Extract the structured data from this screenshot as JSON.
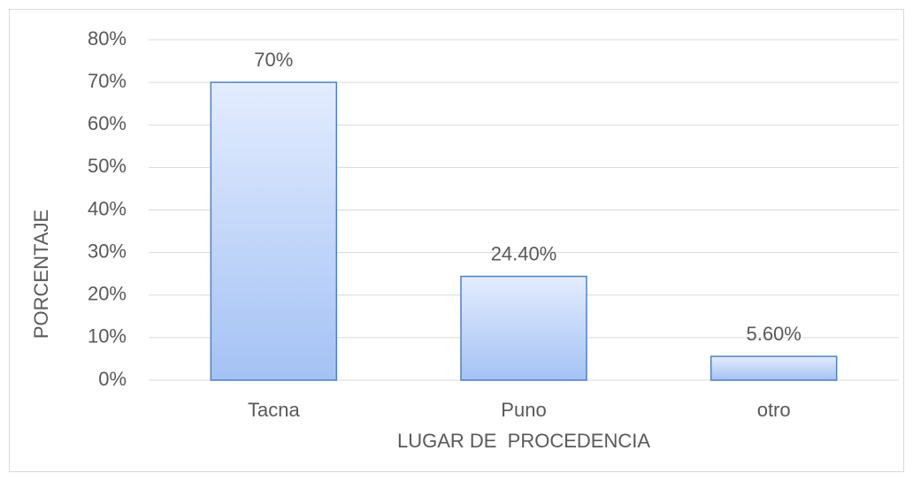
{
  "chart_data": {
    "type": "bar",
    "categories": [
      "Tacna",
      "Puno",
      "otro"
    ],
    "values": [
      70,
      24.4,
      5.6
    ],
    "value_labels": [
      "70%",
      "24.40%",
      "5.60%"
    ],
    "color": "#a4c2f4",
    "xlabel": "LUGAR DE  PROCEDENCIA",
    "ylabel": "PORCENTAJE",
    "ylim": [
      0,
      80
    ],
    "yticks": [
      {
        "value": 0,
        "label": "0%"
      },
      {
        "value": 10,
        "label": "10%"
      },
      {
        "value": 20,
        "label": "20%"
      },
      {
        "value": 30,
        "label": "30%"
      },
      {
        "value": 40,
        "label": "40%"
      },
      {
        "value": 50,
        "label": "50%"
      },
      {
        "value": 60,
        "label": "60%"
      },
      {
        "value": 70,
        "label": "70%"
      },
      {
        "value": 80,
        "label": "80%"
      }
    ],
    "grid": true
  }
}
